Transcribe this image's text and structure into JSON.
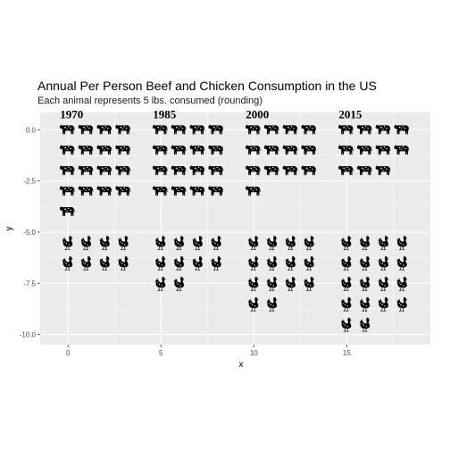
{
  "chart_data": {
    "type": "scatter",
    "title": "Annual Per Person Beef and Chicken Consumption in the US",
    "subtitle": "Each animal represents 5 lbs. consumed (rounding)",
    "xlabel": "x",
    "ylabel": "y",
    "xlim": [
      -1.5,
      19.5
    ],
    "ylim": [
      -10.5,
      0.85
    ],
    "x_ticks": [
      0,
      5,
      10,
      15
    ],
    "y_ticks": [
      0.0,
      -2.5,
      -5.0,
      -7.5,
      -10.0
    ],
    "x_tick_labels": [
      "0",
      "5",
      "10",
      "15"
    ],
    "y_tick_labels": [
      "0.0",
      "-2.5",
      "-5.0",
      "-7.5",
      "-10.0"
    ],
    "grid": true,
    "legend": "none",
    "panel_background": "#ebebeb",
    "grid_color": "#ffffff",
    "icon_color": "#000000",
    "groups": [
      {
        "year": "1970",
        "x": 0,
        "beef": 17,
        "chicken": 8
      },
      {
        "year": "1985",
        "x": 5,
        "beef": 16,
        "chicken": 10
      },
      {
        "year": "2000",
        "x": 10,
        "beef": 13,
        "chicken": 14
      },
      {
        "year": "2015",
        "x": 15,
        "beef": 11,
        "chicken": 18
      }
    ],
    "icons": [
      "cow-icon",
      "chicken-icon"
    ]
  }
}
